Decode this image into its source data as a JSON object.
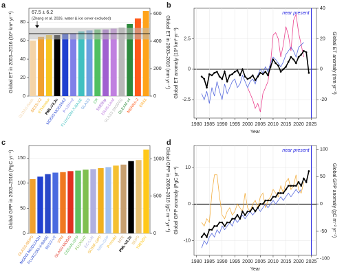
{
  "chart_data": [
    {
      "type": "bar",
      "panel": "a",
      "ylabel": "Global ET in 2003–2016 (10³ km³ yr⁻¹)",
      "y2label": "Global ET in 2003–2016 (mm yr⁻¹)",
      "categories": [
        "GLDAS-Noah",
        "BESS-V2",
        "ETMonitor",
        "PML-V2.2c",
        "MODIS MOD16A2",
        "P-LSH-v2",
        "FLUXCOM-X-BASE",
        "GLASS",
        "CR",
        "SSEBop",
        "ERA5-Land",
        "GLASS (MODIS)",
        "GLEAM v4",
        "MERRA-2",
        "ERA5"
      ],
      "values": [
        60,
        64,
        66,
        66,
        67,
        68,
        70,
        71,
        72,
        72,
        73,
        74,
        78,
        84,
        92
      ],
      "colors": [
        "#f4d4a8",
        "#f0a030",
        "#f7c520",
        "#000000",
        "#2040d0",
        "#8080e8",
        "#40c0c0",
        "#6aa0e0",
        "#50c060",
        "#a060d0",
        "#c080e0",
        "#b8b8b8",
        "#2e8b3e",
        "#ff5a1a",
        "#ffa31a"
      ],
      "reference": {
        "value": 67.5,
        "error": 6.2,
        "label": "67.5 ± 6.2",
        "note": "(Zhang et al. 2026, water & ice cover excluded)"
      },
      "ylim": [
        0,
        95
      ],
      "yticks": [
        0,
        20,
        40,
        60,
        80
      ],
      "y2lim": [
        0,
        640
      ],
      "y2ticks": [
        0,
        200,
        400,
        600
      ],
      "grid": true
    },
    {
      "type": "line",
      "panel": "b",
      "xlabel": "Year",
      "ylabel": "Global ET anomaly (10³ km³ yr⁻¹)",
      "y2label": "Global ET anomaly (mm yr⁻¹)",
      "x": [
        1982,
        1983,
        1984,
        1985,
        1986,
        1987,
        1988,
        1989,
        1990,
        1991,
        1992,
        1993,
        1994,
        1995,
        1996,
        1997,
        1998,
        1999,
        2000,
        2001,
        2002,
        2003,
        2004,
        2005,
        2006,
        2007,
        2008,
        2009,
        2010,
        2011,
        2012,
        2013,
        2014,
        2015,
        2016,
        2017,
        2018,
        2019,
        2020,
        2021,
        2022,
        2023,
        2024
      ],
      "series": [
        {
          "color": "#e8207a",
          "values": [
            null,
            null,
            null,
            null,
            null,
            null,
            null,
            null,
            null,
            null,
            null,
            null,
            null,
            null,
            null,
            null,
            null,
            null,
            -1.5,
            -2,
            -2.5,
            -3.2,
            -2.8,
            -3.5,
            -2,
            -1.5,
            -1,
            0.5,
            2.8,
            3,
            2.5,
            1,
            2,
            3.5,
            2.8,
            1.5,
            4,
            4.5,
            3,
            2,
            1,
            null,
            null
          ]
        },
        {
          "color": "#3a50d8",
          "values": [
            -2,
            -2.5,
            -1.8,
            -2.8,
            -1.5,
            -2.2,
            -1,
            -1.8,
            -2.5,
            -1.2,
            -2,
            -1.5,
            -1,
            -0.8,
            -1.5,
            -1.2,
            -0.5,
            -1,
            -1.5,
            -1,
            -0.8,
            -1.2,
            -0.5,
            0,
            -0.3,
            0.2,
            -0.2,
            0.5,
            1,
            0.8,
            0.5,
            0.2,
            0.6,
            1.2,
            1.5,
            1.8,
            1.5,
            1,
            1.8,
            2,
            2.2,
            null,
            null
          ]
        },
        {
          "color": "#000000",
          "values": [
            -0.6,
            -0.8,
            -1.5,
            -0.4,
            -0.5,
            -0.3,
            -0.2,
            -0.6,
            -0.8,
            -0.2,
            -1,
            -0.5,
            -0.4,
            -0.2,
            -0.1,
            -0.5,
            0,
            -0.6,
            -0.8,
            -0.7,
            -0.5,
            -0.9,
            -0.6,
            -0.3,
            -0.4,
            -0.2,
            -0.5,
            0.2,
            0.8,
            0.5,
            0.3,
            -0.2,
            0,
            0.2,
            0.6,
            1,
            0.8,
            0.5,
            1,
            1.2,
            1.5,
            1.4,
            -0.3
          ]
        }
      ],
      "vline": 2025,
      "vline_label": "near present",
      "xlim": [
        1979,
        2027
      ],
      "xticks": [
        1980,
        1985,
        1990,
        1995,
        2000,
        2005,
        2010,
        2015,
        2020,
        2025
      ],
      "ylim": [
        -4,
        5
      ],
      "yticks": [
        -2.5,
        0,
        2.5
      ],
      "y2lim": [
        -32,
        40
      ],
      "y2ticks": [
        -20,
        0,
        20,
        40
      ],
      "grid": true
    },
    {
      "type": "bar",
      "panel": "c",
      "ylabel": "Global GPP in 2003–2016 (PgC yr⁻¹)",
      "y2label": "Global GPP in 2003–2016 (gC m⁻² yr⁻¹)",
      "categories": [
        "GLASS-BEPS",
        "MODIS MOD17A2H",
        "FLUXCOM-X-BASE",
        "BESS-V2",
        "VPM",
        "GLASS MODIS",
        "CEDAR-GPP",
        "FLUXSAT",
        "EC-LUE",
        "GOSIF-GPP",
        "NIRv-GPP",
        "P-model",
        "MTE",
        "PML-V2.2c",
        "BEPS",
        "TRENDY"
      ],
      "values": [
        108,
        113,
        118,
        121,
        122,
        124,
        125,
        127,
        128,
        130,
        132,
        135,
        137,
        144,
        146,
        167
      ],
      "colors": [
        "#f0a030",
        "#2040d0",
        "#2a48c8",
        "#4a6ae0",
        "#f07820",
        "#e03020",
        "#60c060",
        "#80c050",
        "#b0b0e0",
        "#f0b020",
        "#a0c0f0",
        "#f5c030",
        "#c8a070",
        "#000000",
        "#e8c070",
        "#ffc81a"
      ],
      "ylim": [
        0,
        175
      ],
      "yticks": [
        0,
        50,
        100,
        150
      ],
      "y2lim": [
        0,
        1180
      ],
      "y2ticks": [
        0,
        500,
        1000
      ],
      "grid": true
    },
    {
      "type": "line",
      "panel": "d",
      "xlabel": "Year",
      "ylabel": "Global GPP anomaly (PgC yr⁻¹)",
      "y2label": "Global GPP anomaly (gC m⁻² yr⁻¹)",
      "x": [
        1982,
        1983,
        1984,
        1985,
        1986,
        1987,
        1988,
        1989,
        1990,
        1991,
        1992,
        1993,
        1994,
        1995,
        1996,
        1997,
        1998,
        1999,
        2000,
        2001,
        2002,
        2003,
        2004,
        2005,
        2006,
        2007,
        2008,
        2009,
        2010,
        2011,
        2012,
        2013,
        2014,
        2015,
        2016,
        2017,
        2018,
        2019,
        2020,
        2021,
        2022,
        2023,
        2024
      ],
      "series": [
        {
          "color": "#f0a020",
          "values": [
            -5,
            -6,
            -4,
            -5,
            3,
            8,
            8,
            2,
            -3,
            -4,
            -2,
            -1,
            -3,
            -2,
            0,
            -1,
            -2,
            3,
            -1,
            -2,
            0,
            1,
            -1,
            2,
            3,
            -1,
            1,
            2,
            4,
            3,
            2,
            5,
            3,
            6,
            7,
            4,
            5,
            8,
            4,
            3,
            6,
            null,
            null
          ]
        },
        {
          "color": "#3a50d8",
          "values": [
            -12,
            -10,
            -11,
            -9,
            -8,
            -9,
            -7,
            -8,
            -6,
            -7,
            -6,
            -5,
            -6,
            -4,
            -5,
            -4,
            -3,
            -4,
            -3,
            -2,
            -3,
            -2,
            -1,
            -2,
            -1,
            0,
            -1,
            0,
            1,
            0,
            1,
            2,
            1,
            2,
            3,
            2,
            3,
            4,
            3,
            4,
            null,
            null,
            null
          ]
        },
        {
          "color": "#000000",
          "values": [
            -9,
            -8,
            -9,
            -7,
            -7,
            -6,
            -6,
            -5,
            -5,
            -6,
            -5,
            -5,
            -4,
            -4,
            -3,
            -4,
            -2,
            -3,
            -2,
            -2,
            -1,
            -2,
            -1,
            0,
            0,
            1,
            1,
            1,
            2,
            2,
            3,
            3,
            3,
            4,
            5,
            5,
            5,
            5,
            6,
            5,
            7,
            6,
            9
          ]
        }
      ],
      "vline": 2025,
      "vline_label": "near present",
      "xlim": [
        1979,
        2027
      ],
      "xticks": [
        1980,
        1985,
        1990,
        1995,
        2000,
        2005,
        2010,
        2015,
        2020,
        2025
      ],
      "ylim": [
        -14,
        16
      ],
      "yticks": [
        -10,
        0,
        10
      ],
      "y2lim": [
        -94,
        107
      ],
      "y2ticks": [
        -100,
        -50,
        0,
        50,
        100
      ],
      "grid": true
    }
  ]
}
